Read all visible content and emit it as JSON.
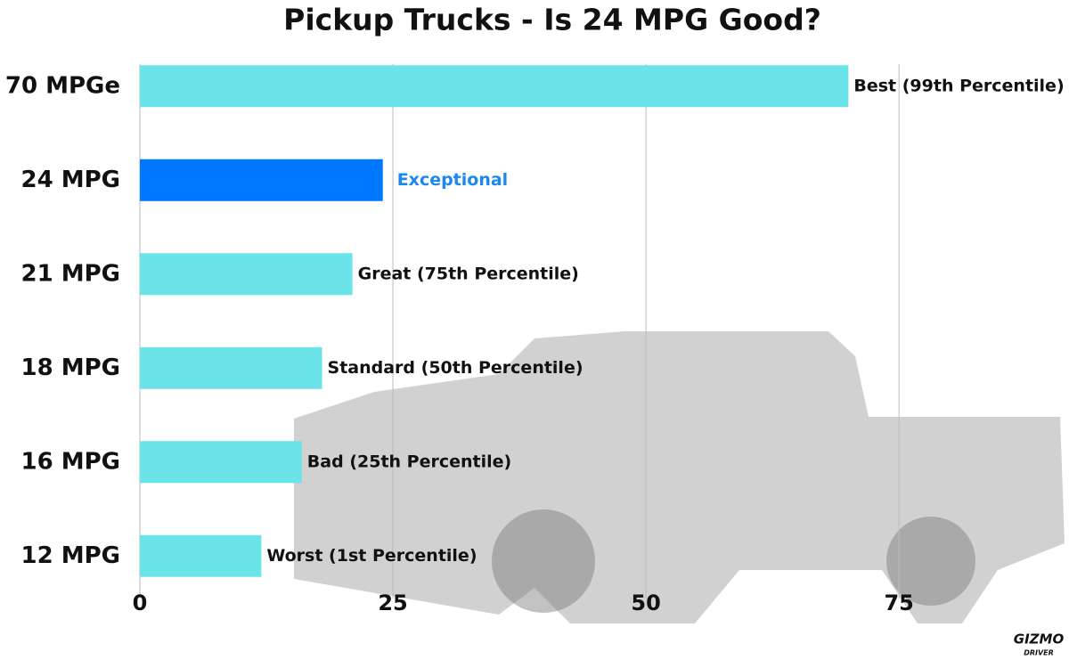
{
  "chart_data": {
    "type": "bar",
    "orientation": "horizontal",
    "title": "Pickup Trucks - Is 24 MPG Good?",
    "categories": [
      "70 MPGe",
      "24 MPG",
      "21 MPG",
      "18 MPG",
      "16 MPG",
      "12 MPG"
    ],
    "values": [
      70,
      24,
      21,
      18,
      16,
      12
    ],
    "value_labels": [
      "Best (99th Percentile)",
      "Exceptional",
      "Great (75th Percentile)",
      "Standard (50th Percentile)",
      "Bad (25th Percentile)",
      "Worst (1st Percentile)"
    ],
    "colors": [
      "#6ae4e8",
      "#0077ff",
      "#6ae4e8",
      "#6ae4e8",
      "#6ae4e8",
      "#6ae4e8"
    ],
    "label_colors": [
      "#111111",
      "#1a88f0",
      "#111111",
      "#111111",
      "#111111",
      "#111111"
    ],
    "xlim": [
      0,
      91
    ],
    "xticks": [
      0,
      25,
      50,
      75
    ],
    "grid": true,
    "logo": {
      "name": "GIZMO",
      "tagline": "DRIVER"
    }
  }
}
